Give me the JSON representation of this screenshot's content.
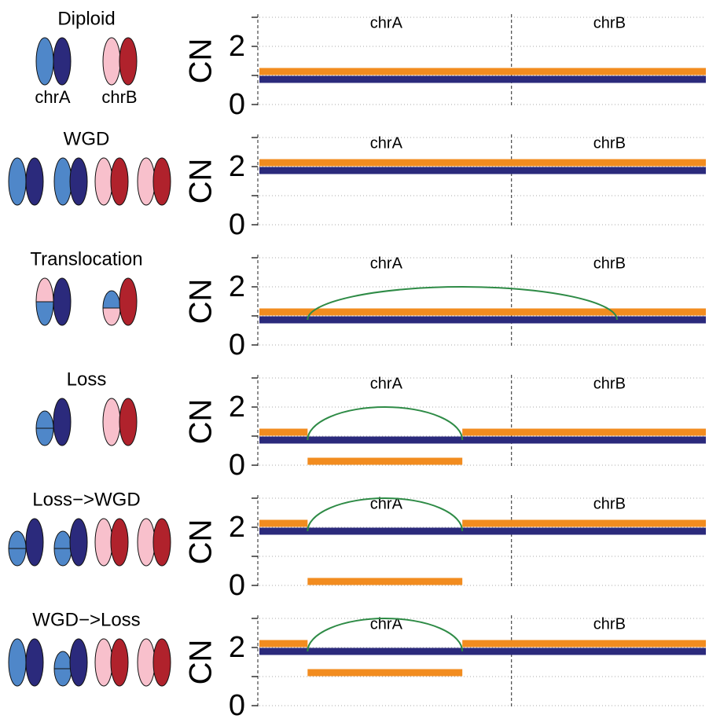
{
  "chart_data": [
    {
      "type": "segment",
      "title": "Diploid",
      "icon_labels": [
        "chrA",
        "chrB"
      ],
      "ylabel": "CN",
      "ylim": [
        0,
        3
      ],
      "yticks": [
        0,
        2
      ],
      "yminorticks": [
        1,
        3
      ],
      "xlim": [
        0,
        176
      ],
      "chromosomes": [
        {
          "name": "chrA",
          "start": 0,
          "end": 100
        },
        {
          "name": "chrB",
          "start": 100,
          "end": 176
        }
      ],
      "series": [
        {
          "color": "#f28c1f",
          "segments": [
            {
              "start": 0,
              "end": 176,
              "value": 1
            }
          ]
        },
        {
          "color": "#2b2a7c",
          "segments": [
            {
              "start": 0,
              "end": 176,
              "value": 1
            }
          ]
        }
      ],
      "arcs": []
    },
    {
      "type": "segment",
      "title": "WGD",
      "ylabel": "CN",
      "ylim": [
        0,
        3
      ],
      "yticks": [
        0,
        2
      ],
      "yminorticks": [
        1,
        3
      ],
      "xlim": [
        0,
        176
      ],
      "chromosomes": [
        {
          "name": "chrA",
          "start": 0,
          "end": 100
        },
        {
          "name": "chrB",
          "start": 100,
          "end": 176
        }
      ],
      "series": [
        {
          "color": "#f28c1f",
          "segments": [
            {
              "start": 0,
              "end": 176,
              "value": 2
            }
          ]
        },
        {
          "color": "#2b2a7c",
          "segments": [
            {
              "start": 0,
              "end": 176,
              "value": 2
            }
          ]
        }
      ],
      "arcs": []
    },
    {
      "type": "segment",
      "title": "Translocation",
      "ylabel": "CN",
      "ylim": [
        0,
        3
      ],
      "yticks": [
        0,
        2
      ],
      "yminorticks": [
        1,
        3
      ],
      "xlim": [
        0,
        176
      ],
      "chromosomes": [
        {
          "name": "chrA",
          "start": 0,
          "end": 100
        },
        {
          "name": "chrB",
          "start": 100,
          "end": 176
        }
      ],
      "series": [
        {
          "color": "#f28c1f",
          "segments": [
            {
              "start": 0,
              "end": 176,
              "value": 1
            }
          ]
        },
        {
          "color": "#2b2a7c",
          "segments": [
            {
              "start": 0,
              "end": 176,
              "value": 1
            }
          ]
        }
      ],
      "arcs": [
        {
          "start": 19,
          "end": 141,
          "base": 1,
          "peak": 2
        }
      ]
    },
    {
      "type": "segment",
      "title": "Loss",
      "ylabel": "CN",
      "ylim": [
        0,
        3
      ],
      "yticks": [
        0,
        2
      ],
      "yminorticks": [
        1,
        3
      ],
      "xlim": [
        0,
        176
      ],
      "chromosomes": [
        {
          "name": "chrA",
          "start": 0,
          "end": 100
        },
        {
          "name": "chrB",
          "start": 100,
          "end": 176
        }
      ],
      "series": [
        {
          "color": "#f28c1f",
          "segments": [
            {
              "start": 0,
              "end": 19,
              "value": 1
            },
            {
              "start": 19,
              "end": 80,
              "value": 0
            },
            {
              "start": 80,
              "end": 176,
              "value": 1
            }
          ]
        },
        {
          "color": "#2b2a7c",
          "segments": [
            {
              "start": 0,
              "end": 176,
              "value": 1
            }
          ]
        }
      ],
      "arcs": [
        {
          "start": 19,
          "end": 80,
          "base": 1,
          "peak": 2
        }
      ]
    },
    {
      "type": "segment",
      "title": "Loss−>WGD",
      "ylabel": "CN",
      "ylim": [
        0,
        3
      ],
      "yticks": [
        0,
        2
      ],
      "yminorticks": [
        1,
        3
      ],
      "xlim": [
        0,
        176
      ],
      "chromosomes": [
        {
          "name": "chrA",
          "start": 0,
          "end": 100
        },
        {
          "name": "chrB",
          "start": 100,
          "end": 176
        }
      ],
      "series": [
        {
          "color": "#f28c1f",
          "segments": [
            {
              "start": 0,
              "end": 19,
              "value": 2
            },
            {
              "start": 19,
              "end": 80,
              "value": 0
            },
            {
              "start": 80,
              "end": 176,
              "value": 2
            }
          ]
        },
        {
          "color": "#2b2a7c",
          "segments": [
            {
              "start": 0,
              "end": 176,
              "value": 2
            }
          ]
        }
      ],
      "arcs": [
        {
          "start": 19,
          "end": 80,
          "base": 2,
          "peak": 3
        }
      ]
    },
    {
      "type": "segment",
      "title": "WGD−>Loss",
      "ylabel": "CN",
      "ylim": [
        0,
        3
      ],
      "yticks": [
        0,
        2
      ],
      "yminorticks": [
        1,
        3
      ],
      "xlim": [
        0,
        176
      ],
      "chromosomes": [
        {
          "name": "chrA",
          "start": 0,
          "end": 100
        },
        {
          "name": "chrB",
          "start": 100,
          "end": 176
        }
      ],
      "series": [
        {
          "color": "#f28c1f",
          "segments": [
            {
              "start": 0,
              "end": 19,
              "value": 2
            },
            {
              "start": 19,
              "end": 80,
              "value": 1
            },
            {
              "start": 80,
              "end": 176,
              "value": 2
            }
          ]
        },
        {
          "color": "#2b2a7c",
          "segments": [
            {
              "start": 0,
              "end": 176,
              "value": 2
            }
          ]
        }
      ],
      "arcs": [
        {
          "start": 19,
          "end": 80,
          "base": 2,
          "peak": 3
        }
      ]
    }
  ]
}
